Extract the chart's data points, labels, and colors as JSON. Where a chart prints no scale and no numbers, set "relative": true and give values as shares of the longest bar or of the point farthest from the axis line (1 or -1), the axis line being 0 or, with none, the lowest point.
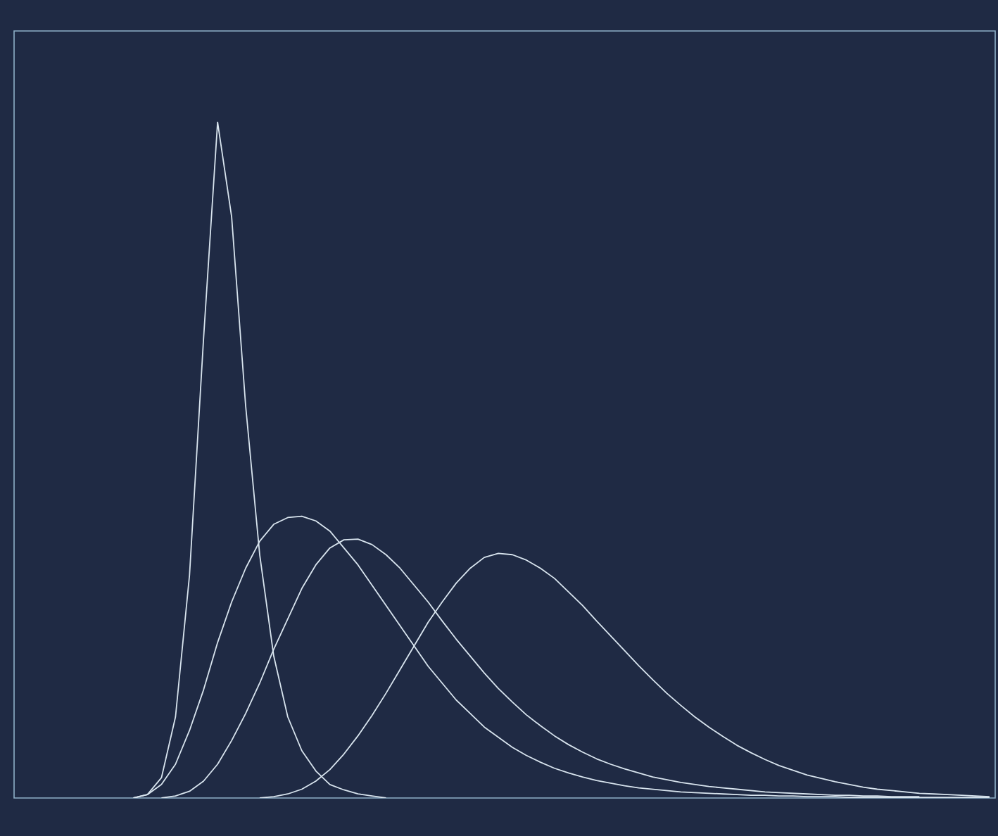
{
  "chart_data": {
    "type": "line",
    "relative": true,
    "categories": [
      null,
      null,
      null,
      null,
      null,
      null,
      null,
      null,
      null,
      null,
      null,
      null,
      null,
      null,
      null,
      null,
      null,
      null,
      null,
      null,
      null,
      null,
      null,
      null,
      null,
      null,
      null,
      null,
      null,
      null,
      null,
      null,
      null,
      null,
      null,
      null,
      null,
      null,
      null,
      null,
      null,
      null,
      null,
      null,
      null,
      null,
      null,
      null,
      null,
      null,
      null,
      null,
      null,
      null,
      null,
      null,
      null,
      null,
      null,
      null,
      null,
      null,
      null,
      null,
      null,
      null,
      null,
      null,
      null,
      null,
      null
    ],
    "series": [
      {
        "color": "#d8e4ee",
        "values": [
          null,
          null,
          null,
          null,
          null,
          null,
          null,
          null,
          null,
          0,
          0.005,
          0.03,
          0.12,
          0.33,
          0.68,
          1,
          0.86,
          0.58,
          0.36,
          0.21,
          0.12,
          0.07,
          0.04,
          0.02,
          0.012,
          0.006,
          0.003,
          0,
          null,
          null,
          null,
          null,
          null,
          null,
          null,
          null,
          null,
          null,
          null,
          null,
          null,
          null,
          null,
          null,
          null,
          null,
          null,
          null,
          null,
          null,
          null,
          null,
          null,
          null,
          null,
          null,
          null,
          null,
          null,
          null,
          null,
          null,
          null,
          null,
          null,
          null,
          null,
          null,
          null,
          null,
          null
        ]
      },
      {
        "color": "#d8e4ee",
        "values": [
          null,
          null,
          null,
          null,
          null,
          null,
          null,
          null,
          null,
          0,
          0.005,
          0.02,
          0.05,
          0.1,
          0.16,
          0.23,
          0.29,
          0.34,
          0.38,
          0.405,
          0.415,
          0.417,
          0.41,
          0.395,
          0.37,
          0.345,
          0.315,
          0.285,
          0.255,
          0.225,
          0.195,
          0.17,
          0.145,
          0.125,
          0.105,
          0.09,
          0.075,
          0.063,
          0.053,
          0.044,
          0.037,
          0.031,
          0.026,
          0.022,
          0.018,
          0.015,
          0.013,
          0.011,
          0.009,
          0.008,
          0.007,
          0.006,
          0.005,
          0.004,
          0.004,
          0.003,
          0.003,
          0.002,
          0.002,
          0.002,
          0.001,
          0.001,
          0.001,
          0.001,
          0.001,
          0.001,
          0.001,
          0.001,
          0.001,
          0.001,
          0.001
        ]
      },
      {
        "color": "#d8e4ee",
        "values": [
          null,
          null,
          null,
          null,
          null,
          null,
          null,
          null,
          null,
          null,
          null,
          0,
          0.003,
          0.01,
          0.025,
          0.05,
          0.085,
          0.125,
          0.17,
          0.22,
          0.265,
          0.31,
          0.345,
          0.37,
          0.382,
          0.383,
          0.375,
          0.36,
          0.34,
          0.315,
          0.29,
          0.262,
          0.235,
          0.21,
          0.185,
          0.162,
          0.142,
          0.123,
          0.107,
          0.092,
          0.079,
          0.068,
          0.058,
          0.05,
          0.043,
          0.037,
          0.031,
          0.027,
          0.023,
          0.02,
          0.017,
          0.015,
          0.013,
          0.011,
          0.009,
          0.008,
          0.007,
          0.006,
          0.005,
          0.004,
          0.004,
          0.003,
          0.003,
          0.002,
          0.002,
          0.002,
          null,
          null,
          null,
          null,
          null
        ]
      },
      {
        "color": "#d8e4ee",
        "values": [
          null,
          null,
          null,
          null,
          null,
          null,
          null,
          null,
          null,
          null,
          null,
          null,
          null,
          null,
          null,
          null,
          null,
          null,
          0,
          0.002,
          0.006,
          0.013,
          0.025,
          0.042,
          0.065,
          0.092,
          0.122,
          0.155,
          0.19,
          0.225,
          0.26,
          0.29,
          0.318,
          0.34,
          0.356,
          0.362,
          0.36,
          0.352,
          0.34,
          0.325,
          0.305,
          0.285,
          0.262,
          0.24,
          0.218,
          0.196,
          0.175,
          0.155,
          0.137,
          0.12,
          0.105,
          0.091,
          0.078,
          0.067,
          0.057,
          0.048,
          0.041,
          0.034,
          0.029,
          0.024,
          0.02,
          0.016,
          0.013,
          0.011,
          0.009,
          0.007,
          0.006,
          0.005,
          0.004,
          0.003,
          0.002
        ]
      }
    ]
  }
}
